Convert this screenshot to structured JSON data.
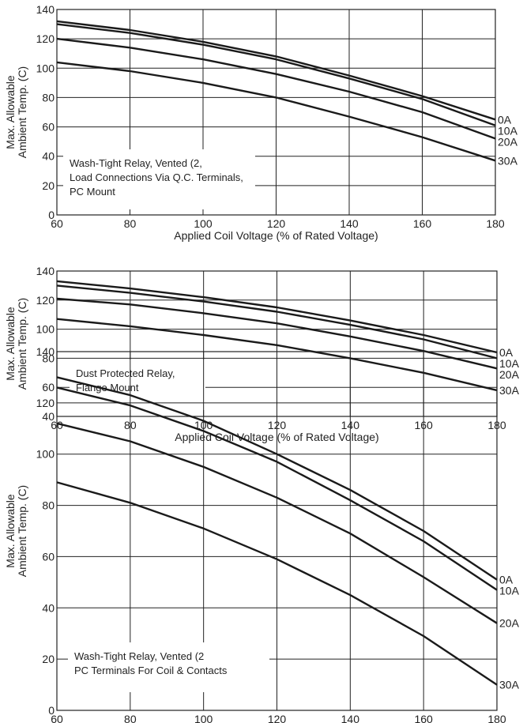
{
  "chart_data": [
    {
      "type": "line",
      "x": [
        60,
        80,
        100,
        120,
        140,
        160,
        180
      ],
      "xlim": [
        60,
        180
      ],
      "ylim": [
        0,
        140
      ],
      "xticks": [
        60,
        80,
        100,
        120,
        140,
        160,
        180
      ],
      "yticks": [
        0,
        20,
        40,
        60,
        80,
        100,
        120,
        140
      ],
      "xlabel": "Applied Coil Voltage (% of Rated Voltage)",
      "ylabel": [
        "Max. Allowable",
        "Ambient Temp. (C)"
      ],
      "grid": true,
      "note": [
        "Wash-Tight Relay, Vented (2,",
        "Load Connections Via Q.C. Terminals,",
        "PC Mount"
      ],
      "series": [
        {
          "name": "0A",
          "values": [
            132,
            126,
            118,
            108,
            95,
            81,
            65
          ]
        },
        {
          "name": "10A",
          "values": [
            130,
            124,
            116,
            106,
            93,
            79,
            61
          ]
        },
        {
          "name": "20A",
          "values": [
            120,
            114,
            106,
            96,
            84,
            70,
            52
          ]
        },
        {
          "name": "30A",
          "values": [
            104,
            98,
            90,
            80,
            67,
            53,
            37
          ]
        }
      ]
    },
    {
      "type": "line",
      "x": [
        60,
        80,
        100,
        120,
        140,
        160,
        180
      ],
      "xlim": [
        60,
        180
      ],
      "ylim": [
        40,
        140
      ],
      "xticks": [
        60,
        80,
        100,
        120,
        140,
        160,
        180
      ],
      "yticks": [
        40,
        60,
        80,
        100,
        120,
        140
      ],
      "xlabel": "Applied Coil Voltage (% of Rated Voltage)",
      "ylabel": [
        "Max. Allowable",
        "Ambient Temp. (C)"
      ],
      "grid": true,
      "note": [
        "Dust Protected Relay,",
        "Flange Mount"
      ],
      "series": [
        {
          "name": "0A",
          "values": [
            133,
            128,
            122,
            115,
            106,
            96,
            84
          ]
        },
        {
          "name": "10A",
          "values": [
            130,
            125,
            119,
            112,
            103,
            93,
            80
          ]
        },
        {
          "name": "20A",
          "values": [
            121,
            117,
            111,
            104,
            95,
            85,
            73
          ]
        },
        {
          "name": "30A",
          "values": [
            107,
            102,
            96,
            89,
            80,
            70,
            58
          ]
        }
      ]
    },
    {
      "type": "line",
      "x": [
        60,
        80,
        100,
        120,
        140,
        160,
        180
      ],
      "xlim": [
        60,
        180
      ],
      "ylim": [
        0,
        140
      ],
      "xticks": [
        60,
        80,
        100,
        120,
        140,
        160,
        180
      ],
      "yticks": [
        0,
        20,
        40,
        60,
        80,
        100,
        120,
        140
      ],
      "xlabel": "Applied Coil Voltage (% of Rated Voltage)",
      "ylabel": [
        "Max. Allowable",
        "Ambient Temp. (C)"
      ],
      "grid": true,
      "note": [
        "Wash-Tight Relay, Vented (2",
        "PC Terminals For Coil & Contacts"
      ],
      "series": [
        {
          "name": "0A",
          "values": [
            130,
            123,
            113,
            100,
            86,
            70,
            51
          ]
        },
        {
          "name": "10A",
          "values": [
            126,
            119,
            109,
            97,
            82,
            66,
            47
          ]
        },
        {
          "name": "20A",
          "values": [
            112,
            105,
            95,
            83,
            69,
            52,
            34
          ]
        },
        {
          "name": "30A",
          "values": [
            89,
            81,
            71,
            59,
            45,
            29,
            10
          ]
        }
      ]
    }
  ]
}
